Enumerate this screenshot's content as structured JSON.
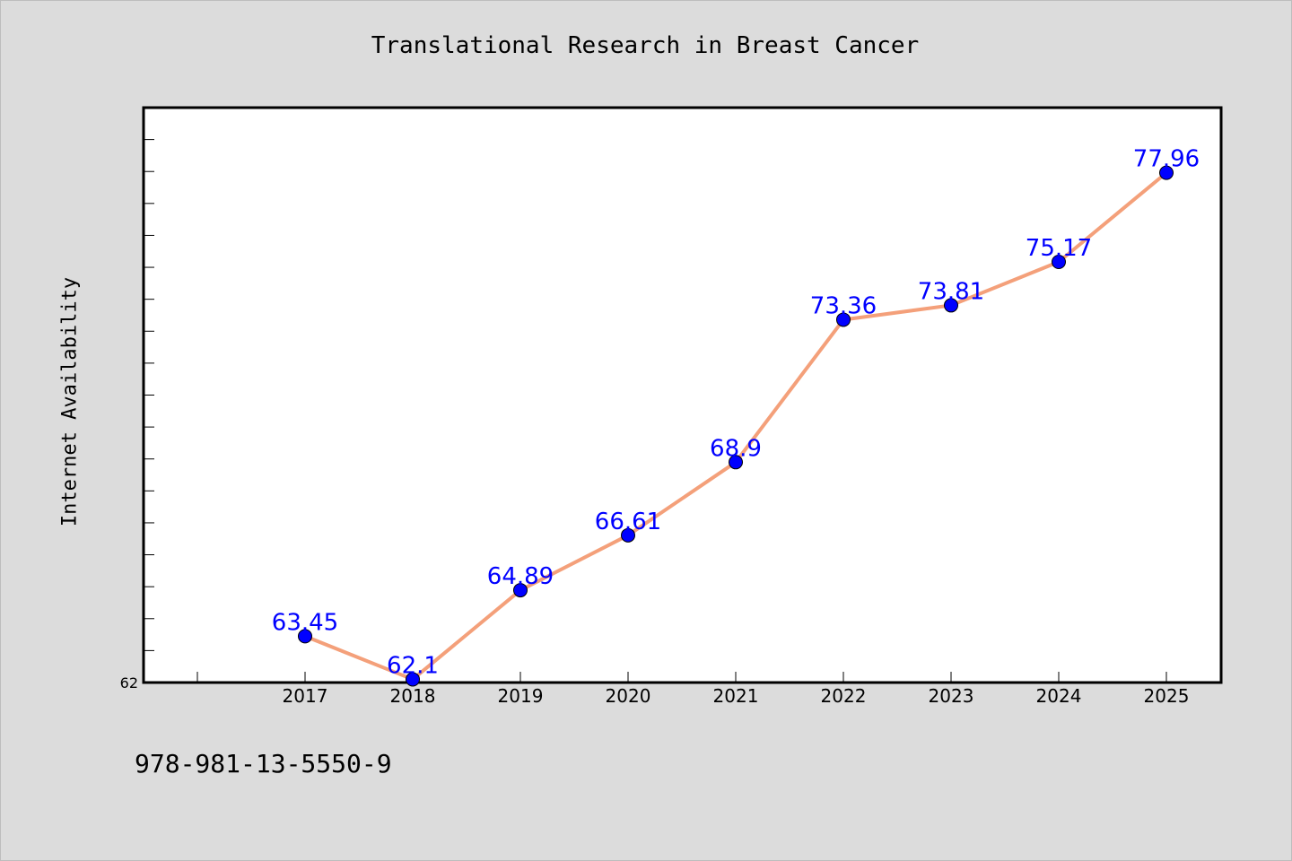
{
  "footer": {
    "code": "978-981-13-5550-9"
  },
  "colors": {
    "line": "#f4a07a",
    "marker": "#0000ff",
    "label": "#0000ff",
    "plot_bg": "#ffffff"
  },
  "chart_data": {
    "type": "line",
    "title": "Translational Research in Breast Cancer",
    "xlabel": "",
    "ylabel": "Internet Availability",
    "categories": [
      "2017",
      "2018",
      "2019",
      "2020",
      "2021",
      "2022",
      "2023",
      "2024",
      "2025"
    ],
    "series": [
      {
        "values": [
          63.45,
          62.1,
          64.89,
          66.61,
          68.9,
          73.36,
          73.81,
          75.17,
          77.96
        ],
        "labels": [
          "63.45",
          "62.1",
          "64.89",
          "66.61",
          "68.9",
          "73.36",
          "73.81",
          "75.17",
          "77.96"
        ]
      }
    ],
    "ylim": [
      62,
      80
    ],
    "ytick_labels": [
      "62"
    ],
    "grid": false,
    "legend": "none"
  }
}
